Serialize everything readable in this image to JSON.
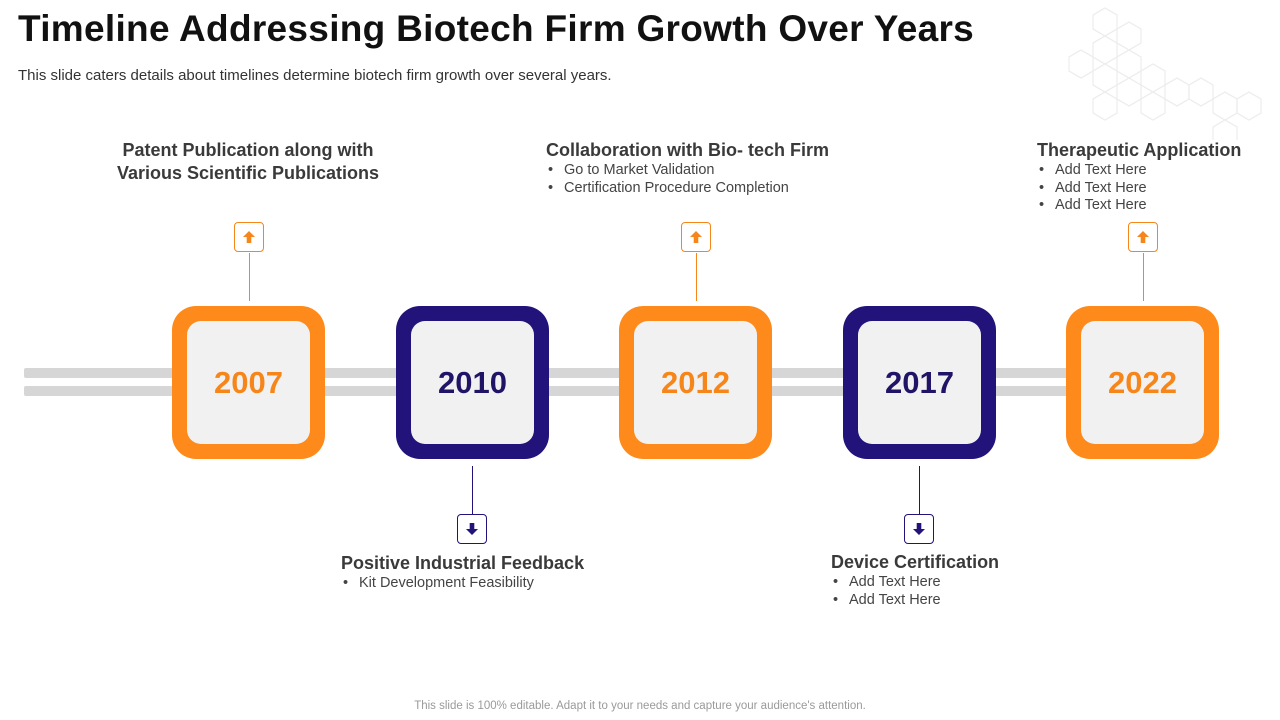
{
  "slide": {
    "title": "Timeline Addressing Biotech Firm Growth Over Years",
    "subtitle": "This slide caters details about timelines determine biotech firm growth over several years.",
    "footer": "This slide is 100% editable. Adapt it to your needs and capture your audience's attention."
  },
  "colors": {
    "orange": "#fd8a1a",
    "navy": "#22137a",
    "track": "#d6d6d6",
    "box_inner": "#f1f1f1"
  },
  "timeline": [
    {
      "year": "2007",
      "position": "above",
      "color": "orange",
      "icon": "arrow-up-icon",
      "heading": "Patent Publication along with Various Scientific Publications",
      "bullets": []
    },
    {
      "year": "2010",
      "position": "below",
      "color": "navy",
      "icon": "arrow-down-icon",
      "heading": "Positive Industrial Feedback",
      "bullets": [
        "Kit Development Feasibility"
      ]
    },
    {
      "year": "2012",
      "position": "above",
      "color": "orange",
      "icon": "arrow-up-icon",
      "heading": "Collaboration with Bio- tech Firm",
      "bullets": [
        "Go to Market Validation",
        "Certification Procedure Completion"
      ]
    },
    {
      "year": "2017",
      "position": "below",
      "color": "navy",
      "icon": "arrow-down-icon",
      "heading": "Device Certification",
      "bullets": [
        "Add Text Here",
        "Add Text Here"
      ]
    },
    {
      "year": "2022",
      "position": "above",
      "color": "orange",
      "icon": "arrow-up-icon",
      "heading": "Therapeutic Application",
      "bullets": [
        "Add Text Here",
        "Add Text Here",
        "Add Text Here"
      ]
    }
  ]
}
